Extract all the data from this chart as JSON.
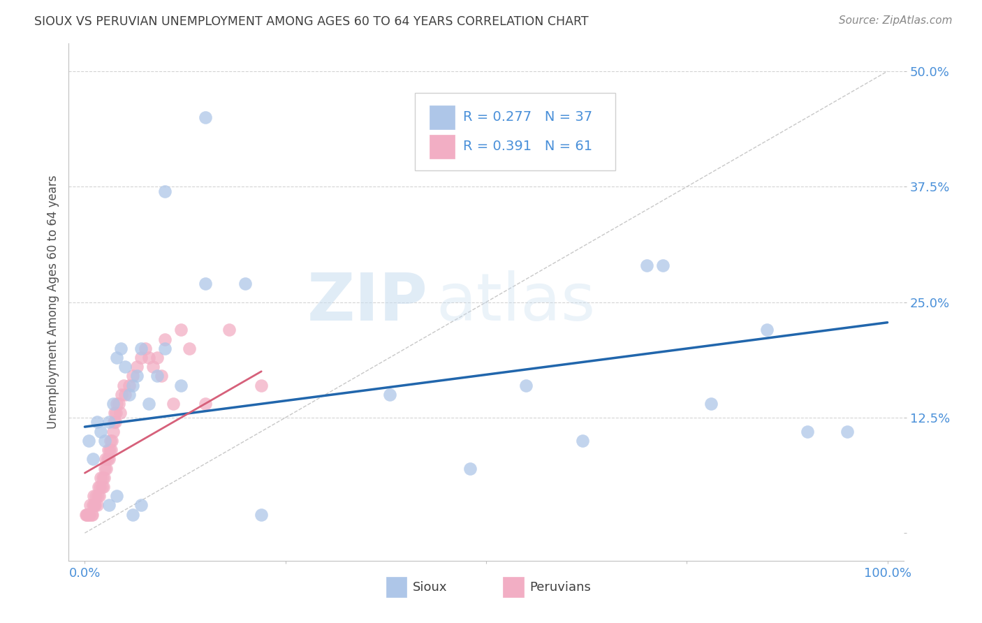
{
  "title": "SIOUX VS PERUVIAN UNEMPLOYMENT AMONG AGES 60 TO 64 YEARS CORRELATION CHART",
  "source": "Source: ZipAtlas.com",
  "ylabel": "Unemployment Among Ages 60 to 64 years",
  "xlim": [
    -0.02,
    1.02
  ],
  "ylim": [
    -0.03,
    0.53
  ],
  "ytick_values": [
    0.125,
    0.25,
    0.375,
    0.5
  ],
  "ytick_labels": [
    "12.5%",
    "25.0%",
    "37.5%",
    "50.0%"
  ],
  "sioux_color": "#aec6e8",
  "peruvian_color": "#f2aec4",
  "sioux_line_color": "#2166ac",
  "peruvian_line_color": "#d6607a",
  "diagonal_color": "#c8c8c8",
  "legend_R_sioux": "R = 0.277",
  "legend_N_sioux": "N = 37",
  "legend_R_peruvian": "R = 0.391",
  "legend_N_peruvian": "N = 61",
  "legend_label_sioux": "Sioux",
  "legend_label_peruvian": "Peruvians",
  "watermark_zip": "ZIP",
  "watermark_atlas": "atlas",
  "sioux_x": [
    0.005,
    0.01,
    0.015,
    0.02,
    0.025,
    0.03,
    0.035,
    0.04,
    0.045,
    0.05,
    0.055,
    0.06,
    0.065,
    0.07,
    0.08,
    0.09,
    0.1,
    0.12,
    0.15,
    0.2,
    0.22,
    0.38,
    0.48,
    0.55,
    0.62,
    0.7,
    0.72,
    0.78,
    0.85,
    0.9,
    0.95,
    0.03,
    0.04,
    0.06,
    0.07,
    0.1,
    0.15
  ],
  "sioux_y": [
    0.1,
    0.08,
    0.12,
    0.11,
    0.1,
    0.12,
    0.14,
    0.19,
    0.2,
    0.18,
    0.15,
    0.16,
    0.17,
    0.2,
    0.14,
    0.17,
    0.2,
    0.16,
    0.27,
    0.27,
    0.02,
    0.15,
    0.07,
    0.16,
    0.1,
    0.29,
    0.29,
    0.14,
    0.22,
    0.11,
    0.11,
    0.03,
    0.04,
    0.02,
    0.03,
    0.37,
    0.45
  ],
  "peruvian_x": [
    0.001,
    0.002,
    0.003,
    0.004,
    0.005,
    0.006,
    0.007,
    0.008,
    0.009,
    0.01,
    0.011,
    0.012,
    0.013,
    0.014,
    0.015,
    0.016,
    0.017,
    0.018,
    0.019,
    0.02,
    0.021,
    0.022,
    0.023,
    0.024,
    0.025,
    0.026,
    0.027,
    0.028,
    0.029,
    0.03,
    0.031,
    0.032,
    0.033,
    0.034,
    0.035,
    0.036,
    0.037,
    0.038,
    0.039,
    0.04,
    0.042,
    0.044,
    0.046,
    0.048,
    0.05,
    0.055,
    0.06,
    0.065,
    0.07,
    0.075,
    0.08,
    0.085,
    0.09,
    0.095,
    0.1,
    0.11,
    0.12,
    0.13,
    0.15,
    0.18,
    0.22
  ],
  "peruvian_y": [
    0.02,
    0.02,
    0.02,
    0.02,
    0.02,
    0.02,
    0.03,
    0.02,
    0.02,
    0.03,
    0.04,
    0.03,
    0.03,
    0.04,
    0.03,
    0.04,
    0.05,
    0.04,
    0.05,
    0.06,
    0.05,
    0.06,
    0.05,
    0.06,
    0.07,
    0.08,
    0.07,
    0.08,
    0.09,
    0.08,
    0.09,
    0.1,
    0.09,
    0.1,
    0.11,
    0.12,
    0.13,
    0.12,
    0.13,
    0.14,
    0.14,
    0.13,
    0.15,
    0.16,
    0.15,
    0.16,
    0.17,
    0.18,
    0.19,
    0.2,
    0.19,
    0.18,
    0.19,
    0.17,
    0.21,
    0.14,
    0.22,
    0.2,
    0.14,
    0.22,
    0.16
  ],
  "sioux_trend_x": [
    0.0,
    1.0
  ],
  "sioux_trend_y": [
    0.115,
    0.228
  ],
  "peruvian_trend_x": [
    0.0,
    0.22
  ],
  "peruvian_trend_y": [
    0.065,
    0.175
  ],
  "grid_color": "#d4d4d4",
  "axis_tick_color": "#4a90d9",
  "title_color": "#404040",
  "background_color": "#ffffff"
}
